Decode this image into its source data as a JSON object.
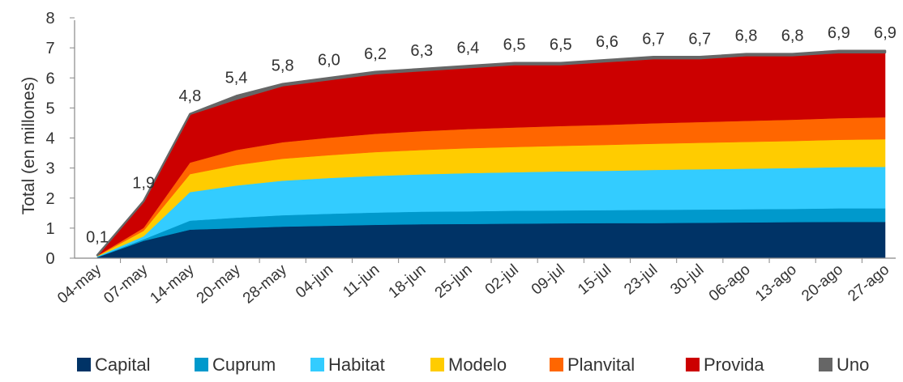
{
  "chart_data": {
    "type": "area",
    "stacked": true,
    "title": "",
    "ylabel": "Total (en millones)",
    "xlabel": "",
    "ylim": [
      0,
      8
    ],
    "yticks": [
      0,
      1,
      2,
      3,
      4,
      5,
      6,
      7,
      8
    ],
    "grid": false,
    "legend_position": "bottom",
    "categories": [
      "04-may",
      "07-may",
      "14-may",
      "20-may",
      "28-may",
      "04-jun",
      "11-jun",
      "18-jun",
      "25-jun",
      "02-jul",
      "09-jul",
      "15-jul",
      "23-jul",
      "30-jul",
      "06-ago",
      "13-ago",
      "20-ago",
      "27-ago"
    ],
    "series": [
      {
        "name": "Capital",
        "color": "#003366",
        "values": [
          0.03,
          0.58,
          0.95,
          1.0,
          1.05,
          1.08,
          1.11,
          1.13,
          1.14,
          1.15,
          1.16,
          1.17,
          1.17,
          1.18,
          1.19,
          1.2,
          1.21,
          1.21
        ]
      },
      {
        "name": "Cuprum",
        "color": "#0099CC",
        "values": [
          0.01,
          0.05,
          0.3,
          0.35,
          0.38,
          0.4,
          0.41,
          0.42,
          0.42,
          0.43,
          0.43,
          0.43,
          0.44,
          0.44,
          0.44,
          0.44,
          0.45,
          0.45
        ]
      },
      {
        "name": "Habitat",
        "color": "#33CCFF",
        "values": [
          0.02,
          0.1,
          0.95,
          1.07,
          1.15,
          1.19,
          1.22,
          1.24,
          1.27,
          1.28,
          1.3,
          1.31,
          1.33,
          1.34,
          1.35,
          1.36,
          1.37,
          1.38
        ]
      },
      {
        "name": "Modelo",
        "color": "#FFCC00",
        "values": [
          0.01,
          0.18,
          0.6,
          0.68,
          0.73,
          0.76,
          0.79,
          0.81,
          0.83,
          0.84,
          0.85,
          0.86,
          0.87,
          0.88,
          0.89,
          0.9,
          0.91,
          0.92
        ]
      },
      {
        "name": "Planvital",
        "color": "#FF6600",
        "values": [
          0.01,
          0.1,
          0.38,
          0.5,
          0.55,
          0.58,
          0.61,
          0.63,
          0.64,
          0.65,
          0.66,
          0.67,
          0.68,
          0.69,
          0.7,
          0.71,
          0.72,
          0.73
        ]
      },
      {
        "name": "Provida",
        "color": "#CC0000",
        "values": [
          0.02,
          0.89,
          1.62,
          1.7,
          1.89,
          1.94,
          2.01,
          2.02,
          2.05,
          2.1,
          2.05,
          2.11,
          2.16,
          2.12,
          2.18,
          2.14,
          2.19,
          2.16
        ]
      },
      {
        "name": "Uno",
        "color": "#666666",
        "values": [
          0.0,
          0.0,
          0.0,
          0.1,
          0.05,
          0.05,
          0.05,
          0.05,
          0.05,
          0.05,
          0.05,
          0.05,
          0.05,
          0.05,
          0.05,
          0.05,
          0.05,
          0.05
        ]
      }
    ],
    "totals": [
      0.1,
      1.9,
      4.8,
      5.4,
      5.8,
      6.0,
      6.2,
      6.3,
      6.4,
      6.5,
      6.5,
      6.6,
      6.7,
      6.7,
      6.8,
      6.8,
      6.9,
      6.9
    ],
    "total_labels": [
      "0,1",
      "1,9",
      "4,8",
      "5,4",
      "5,8",
      "6,0",
      "6,2",
      "6,3",
      "6,4",
      "6,5",
      "6,5",
      "6,6",
      "6,7",
      "6,7",
      "6,8",
      "6,8",
      "6,9",
      "6,9"
    ]
  }
}
